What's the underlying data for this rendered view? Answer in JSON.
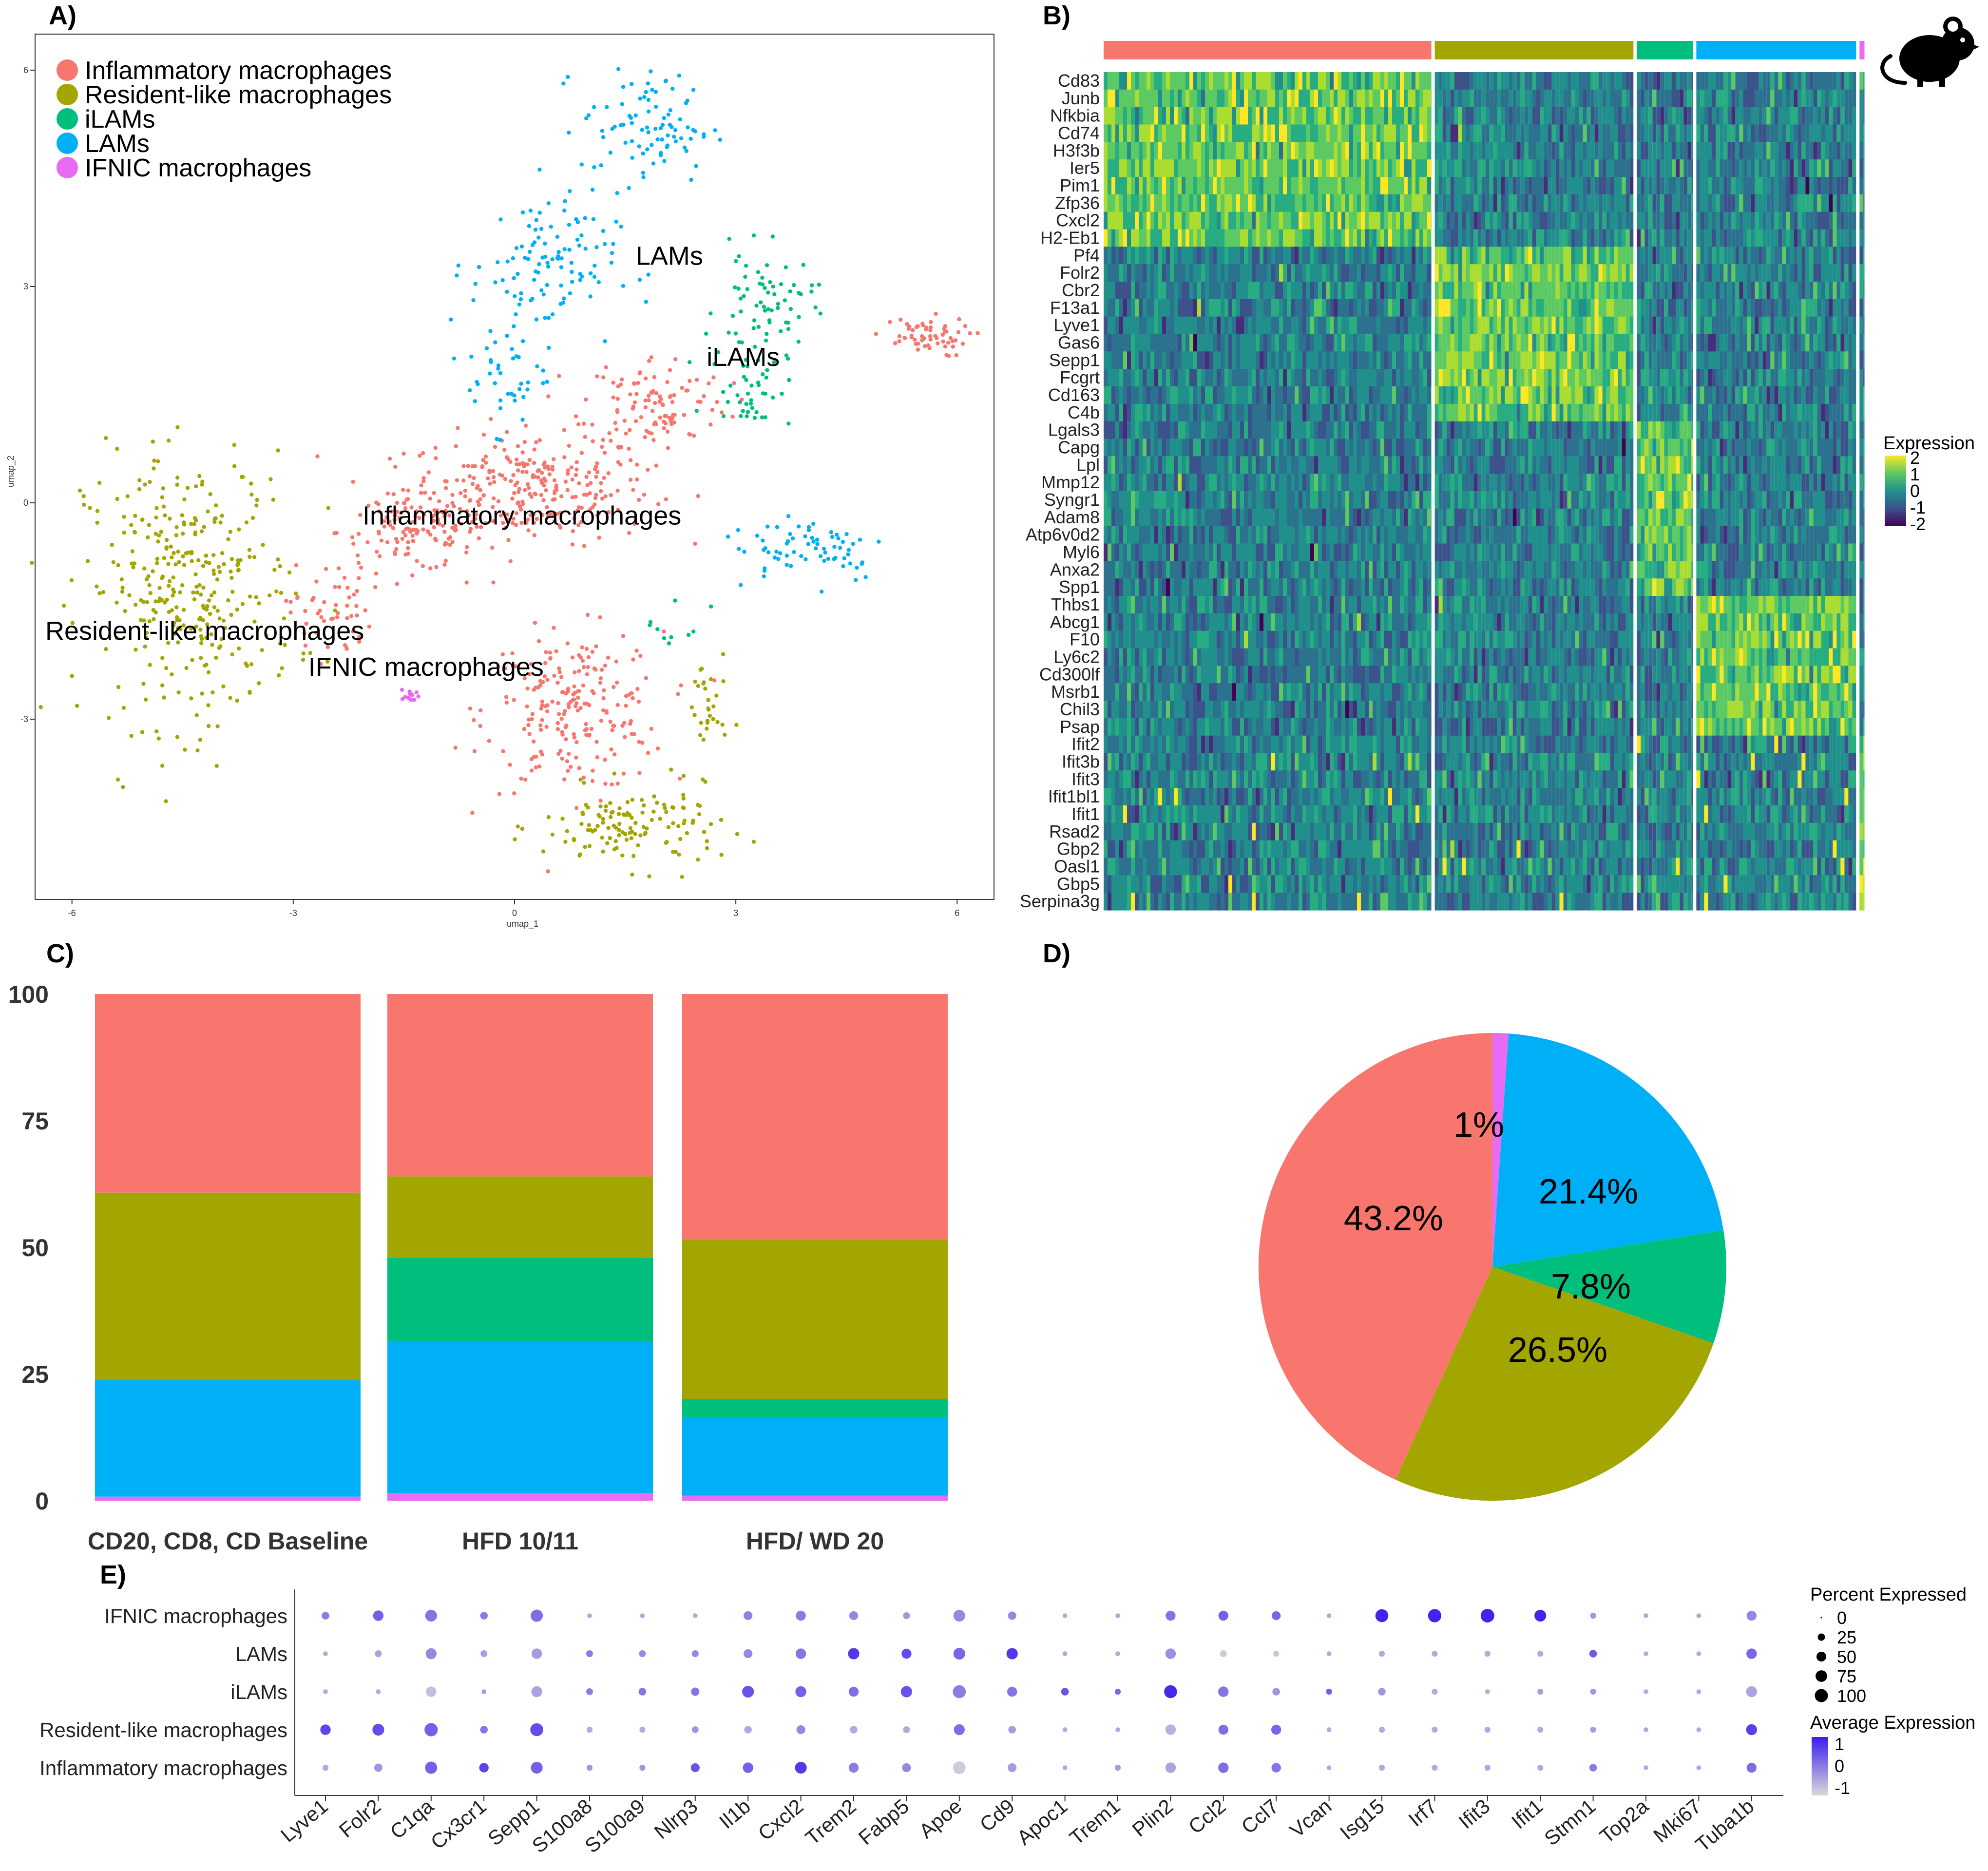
{
  "panels": {
    "a": "A)",
    "b": "B)",
    "c": "C)",
    "d": "D)",
    "e": "E)"
  },
  "colors": {
    "inflammatory": "#F8766D",
    "resident": "#A3A500",
    "ilams": "#00BF7D",
    "lams": "#00B0F6",
    "ifnic": "#E76BF3"
  },
  "icon": "mouse-icon",
  "chart_data": [
    {
      "type": "scatter",
      "panel": "A",
      "xlabel": "umap_1",
      "ylabel": "umap_2",
      "xticks": [
        -6,
        -3,
        0,
        3,
        6
      ],
      "yticks": [
        -3,
        0,
        3,
        6
      ],
      "xlim": [
        -6.5,
        6.5
      ],
      "ylim": [
        -5.5,
        6.5
      ],
      "legend_position": "top-left",
      "legend": [
        "Inflammatory macrophages",
        "Resident-like macrophages",
        "iLAMs",
        "LAMs",
        "IFNIC macrophages"
      ],
      "cluster_labels": [
        {
          "text": "LAMs",
          "x": 2.1,
          "y": 3.3
        },
        {
          "text": "iLAMs",
          "x": 3.1,
          "y": 1.9
        },
        {
          "text": "Inflammatory macrophages",
          "x": 0.1,
          "y": -0.3
        },
        {
          "text": "Resident-like macrophages",
          "x": -4.2,
          "y": -1.9
        },
        {
          "text": "IFNIC macrophages",
          "x": -1.2,
          "y": -2.4
        }
      ],
      "clusters": [
        {
          "name": "Inflammatory macrophages",
          "regions": [
            [
              0.2,
              0.2,
              1.5,
              0.7,
              280
            ],
            [
              -1.4,
              -0.4,
              0.9,
              0.5,
              120
            ],
            [
              0.8,
              -2.9,
              1.1,
              1.0,
              220
            ],
            [
              1.9,
              1.4,
              0.9,
              0.6,
              110
            ],
            [
              5.5,
              2.3,
              0.6,
              0.25,
              60
            ],
            [
              -2.5,
              -1.5,
              0.5,
              0.6,
              50
            ]
          ]
        },
        {
          "name": "Resident-like macrophages",
          "regions": [
            [
              -4.4,
              -1.2,
              1.3,
              1.7,
              330
            ],
            [
              1.6,
              -4.5,
              1.1,
              0.5,
              130
            ],
            [
              2.6,
              -2.9,
              0.25,
              0.8,
              30
            ]
          ]
        },
        {
          "name": "iLAMs",
          "regions": [
            [
              3.4,
              2.7,
              0.6,
              0.7,
              70
            ],
            [
              3.2,
              1.6,
              0.5,
              0.5,
              40
            ],
            [
              2.2,
              -1.7,
              0.4,
              0.4,
              10
            ]
          ]
        },
        {
          "name": "LAMs",
          "regions": [
            [
              0.4,
              3.3,
              0.9,
              0.9,
              110
            ],
            [
              1.8,
              5.2,
              0.8,
              0.7,
              90
            ],
            [
              -0.1,
              1.8,
              0.5,
              0.7,
              40
            ],
            [
              4.0,
              -0.6,
              1.0,
              0.45,
              70
            ]
          ]
        },
        {
          "name": "IFNIC macrophages",
          "regions": [
            [
              -1.4,
              -2.7,
              0.12,
              0.1,
              15
            ]
          ]
        }
      ]
    },
    {
      "type": "heatmap",
      "panel": "B",
      "genes": [
        "Cd83",
        "Junb",
        "Nfkbia",
        "Cd74",
        "H3f3b",
        "Ier5",
        "Pim1",
        "Zfp36",
        "Cxcl2",
        "H2-Eb1",
        "Pf4",
        "Folr2",
        "Cbr2",
        "F13a1",
        "Lyve1",
        "Gas6",
        "Sepp1",
        "Fcgrt",
        "Cd163",
        "C4b",
        "Lgals3",
        "Capg",
        "Lpl",
        "Mmp12",
        "Syngr1",
        "Adam8",
        "Atp6v0d2",
        "Myl6",
        "Anxa2",
        "Spp1",
        "Thbs1",
        "Abcg1",
        "F10",
        "Ly6c2",
        "Cd300lf",
        "Msrb1",
        "Chil3",
        "Psap",
        "Ifit2",
        "Ifit3b",
        "Ifit3",
        "Ifit1bl1",
        "Ifit1",
        "Rsad2",
        "Gbp2",
        "Oasl1",
        "Gbp5",
        "Serpina3g"
      ],
      "groups": [
        "Inflammatory macrophages",
        "Resident-like macrophages",
        "iLAMs",
        "LAMs",
        "IFNIC macrophages"
      ],
      "group_fractions": [
        0.432,
        0.265,
        0.078,
        0.214,
        0.011
      ],
      "gene_blocks": [
        10,
        10,
        10,
        8,
        10
      ],
      "legend_title": "Expression",
      "legend_ticks": [
        "2",
        "1",
        "0",
        "-1",
        "-2"
      ],
      "color_range": [
        -2,
        2
      ]
    },
    {
      "type": "bar",
      "panel": "C",
      "stacked": true,
      "categories": [
        "CD20, CD8, CD Baseline",
        "HFD 10/11",
        "HFD/ WD 20"
      ],
      "yticks": [
        "0",
        "25",
        "50",
        "75",
        "100"
      ],
      "ylim": [
        0,
        100
      ],
      "series": [
        {
          "name": "IFNIC macrophages",
          "values": [
            0.8,
            1.5,
            1.0
          ]
        },
        {
          "name": "LAMs",
          "values": [
            23.0,
            30.0,
            15.5
          ]
        },
        {
          "name": "iLAMs",
          "values": [
            0.0,
            16.5,
            3.5
          ]
        },
        {
          "name": "Resident-like macrophages",
          "values": [
            37.0,
            16.0,
            31.5
          ]
        },
        {
          "name": "Inflammatory macrophages",
          "values": [
            39.2,
            36.0,
            48.5
          ]
        }
      ]
    },
    {
      "type": "pie",
      "panel": "D",
      "slices": [
        {
          "name": "IFNIC macrophages",
          "value": 1.1,
          "label": "1%"
        },
        {
          "name": "LAMs",
          "value": 21.4,
          "label": "21.4%"
        },
        {
          "name": "iLAMs",
          "value": 7.8,
          "label": "7.8%"
        },
        {
          "name": "Resident-like macrophages",
          "value": 26.5,
          "label": "26.5%"
        },
        {
          "name": "Inflammatory macrophages",
          "value": 43.2,
          "label": "43.2%"
        }
      ]
    },
    {
      "type": "scatter",
      "subtype": "dot-plot",
      "panel": "E",
      "genes": [
        "Lyve1",
        "Folr2",
        "C1qa",
        "Cx3cr1",
        "Sepp1",
        "S100a8",
        "S100a9",
        "Nlrp3",
        "Il1b",
        "Cxcl2",
        "Trem2",
        "Fabp5",
        "Apoe",
        "Cd9",
        "Apoc1",
        "Trem1",
        "Plin2",
        "Ccl2",
        "Ccl7",
        "Vcan",
        "Isg15",
        "Irf7",
        "Ifit3",
        "Ifit1",
        "Stmn1",
        "Top2a",
        "Mki67",
        "Tuba1b"
      ],
      "groups": [
        "IFNIC macrophages",
        "LAMs",
        "iLAMs",
        "Resident-like macrophages",
        "Inflammatory macrophages"
      ],
      "pct_expressed": [
        [
          20,
          45,
          60,
          20,
          65,
          5,
          5,
          5,
          30,
          40,
          30,
          15,
          60,
          25,
          5,
          5,
          40,
          40,
          30,
          5,
          75,
          80,
          85,
          60,
          10,
          5,
          5,
          40
        ],
        [
          5,
          15,
          50,
          15,
          45,
          15,
          15,
          15,
          30,
          45,
          55,
          40,
          60,
          55,
          5,
          5,
          45,
          15,
          10,
          5,
          10,
          10,
          10,
          10,
          20,
          5,
          5,
          45
        ],
        [
          5,
          5,
          45,
          5,
          50,
          15,
          20,
          25,
          60,
          50,
          40,
          55,
          75,
          40,
          20,
          10,
          75,
          45,
          20,
          10,
          20,
          10,
          5,
          10,
          10,
          5,
          5,
          50
        ],
        [
          45,
          60,
          80,
          20,
          75,
          10,
          10,
          15,
          20,
          30,
          20,
          15,
          50,
          20,
          5,
          5,
          45,
          40,
          40,
          5,
          10,
          10,
          10,
          10,
          10,
          5,
          5,
          50
        ],
        [
          10,
          25,
          65,
          35,
          60,
          10,
          10,
          30,
          45,
          60,
          40,
          30,
          70,
          30,
          5,
          10,
          45,
          45,
          35,
          5,
          10,
          10,
          10,
          10,
          20,
          5,
          5,
          40
        ]
      ],
      "avg_expression": [
        [
          0.2,
          0.6,
          0.3,
          0.2,
          0.4,
          -0.5,
          -0.5,
          -0.5,
          0.1,
          0.2,
          0.0,
          -0.2,
          0.0,
          0.0,
          -0.5,
          -0.5,
          0.3,
          0.6,
          0.5,
          -0.5,
          1.5,
          1.5,
          1.5,
          1.5,
          -0.2,
          -0.5,
          -0.5,
          0.0
        ],
        [
          -0.5,
          -0.4,
          0.0,
          -0.3,
          -0.3,
          0.2,
          0.0,
          0.0,
          0.0,
          0.3,
          1.2,
          0.9,
          0.5,
          1.2,
          -0.5,
          -0.5,
          -0.1,
          -1.0,
          -0.9,
          -0.5,
          -0.5,
          -0.5,
          -0.5,
          -0.5,
          0.7,
          -0.5,
          -0.5,
          0.5
        ],
        [
          -0.5,
          -0.5,
          -0.8,
          -0.3,
          -0.4,
          0.2,
          0.3,
          0.3,
          0.8,
          0.6,
          0.4,
          0.8,
          0.2,
          0.3,
          0.8,
          0.5,
          1.4,
          0.3,
          -0.2,
          0.6,
          -0.2,
          -0.5,
          -0.5,
          -0.3,
          -0.2,
          -0.5,
          -0.5,
          -0.4
        ],
        [
          1.0,
          0.9,
          0.6,
          0.3,
          0.9,
          -0.5,
          -0.5,
          -0.2,
          -0.5,
          0.0,
          -0.5,
          -0.5,
          0.4,
          -0.3,
          -0.5,
          -0.5,
          -0.6,
          0.4,
          0.5,
          -0.5,
          -0.5,
          -0.5,
          -0.5,
          -0.5,
          -0.3,
          -0.5,
          -0.5,
          1.1
        ],
        [
          -0.5,
          -0.2,
          0.6,
          1.0,
          0.6,
          -0.2,
          -0.2,
          0.8,
          0.6,
          1.2,
          0.2,
          0.0,
          -1.0,
          -0.3,
          -0.5,
          -0.3,
          -0.4,
          0.4,
          0.3,
          -0.5,
          -0.5,
          -0.5,
          -0.5,
          -0.5,
          0.2,
          -0.5,
          -0.5,
          0.4
        ]
      ],
      "size_legend_title": "Percent Expressed",
      "size_legend": [
        "0",
        "25",
        "50",
        "75",
        "100"
      ],
      "color_legend_title": "Average Expression",
      "color_legend": [
        "1",
        "0",
        "-1"
      ]
    }
  ]
}
